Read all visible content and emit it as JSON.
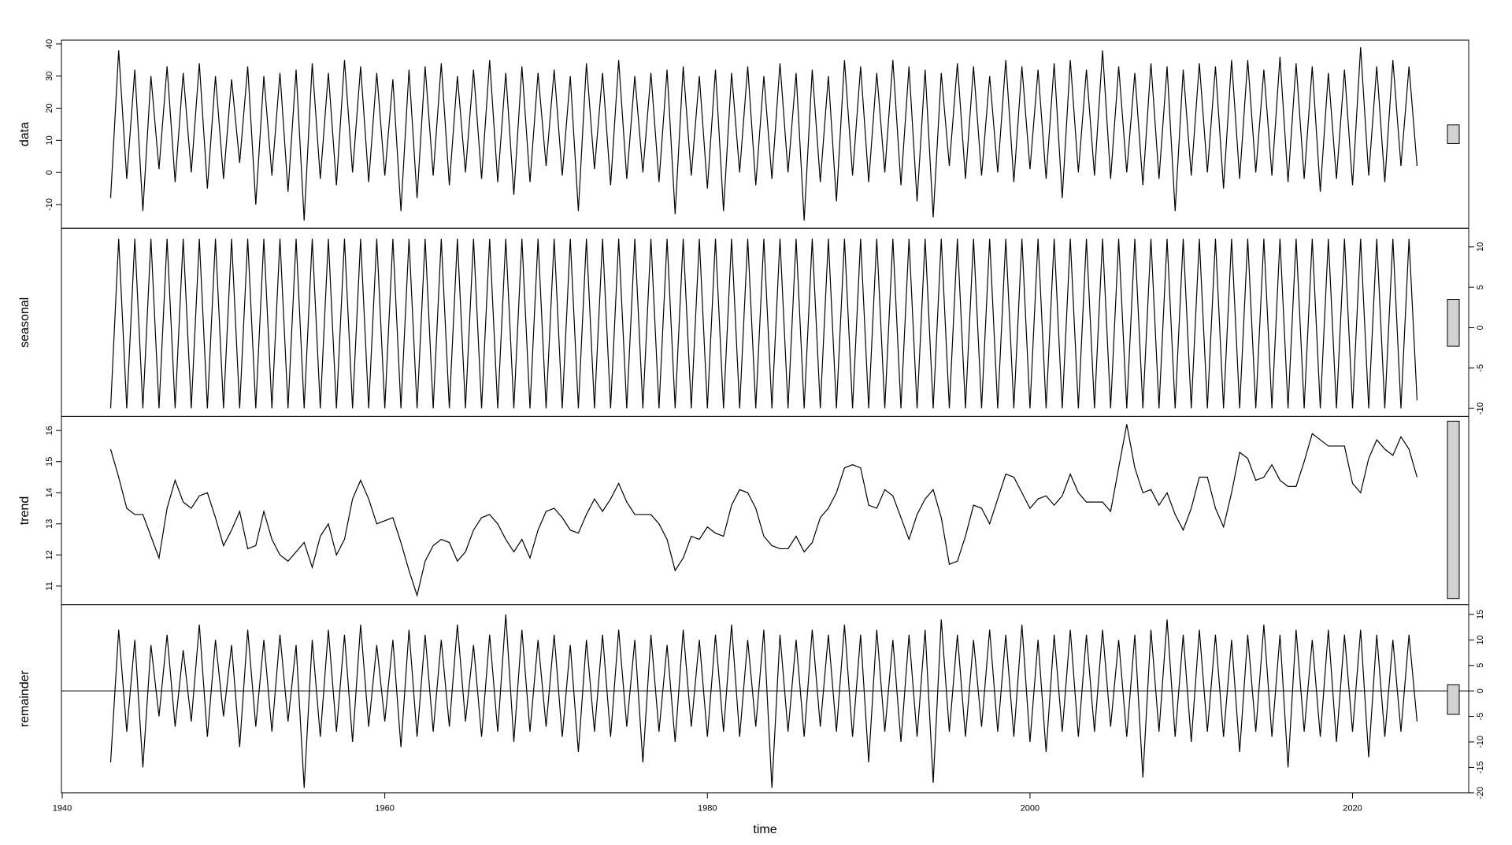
{
  "chart_data": {
    "type": "line",
    "xlabel": "time",
    "xlim": [
      1939.95,
      2027.2
    ],
    "xticks": [
      1940,
      1960,
      1980,
      2000,
      2020
    ],
    "x": [
      1943,
      1943.5,
      1944,
      1944.5,
      1945,
      1945.5,
      1946,
      1946.5,
      1947,
      1947.5,
      1948,
      1948.5,
      1949,
      1949.5,
      1950,
      1950.5,
      1951,
      1951.5,
      1952,
      1952.5,
      1953,
      1953.5,
      1954,
      1954.5,
      1955,
      1955.5,
      1956,
      1956.5,
      1957,
      1957.5,
      1958,
      1958.5,
      1959,
      1959.5,
      1960,
      1960.5,
      1961,
      1961.5,
      1962,
      1962.5,
      1963,
      1963.5,
      1964,
      1964.5,
      1965,
      1965.5,
      1966,
      1966.5,
      1967,
      1967.5,
      1968,
      1968.5,
      1969,
      1969.5,
      1970,
      1970.5,
      1971,
      1971.5,
      1972,
      1972.5,
      1973,
      1973.5,
      1974,
      1974.5,
      1975,
      1975.5,
      1976,
      1976.5,
      1977,
      1977.5,
      1978,
      1978.5,
      1979,
      1979.5,
      1980,
      1980.5,
      1981,
      1981.5,
      1982,
      1982.5,
      1983,
      1983.5,
      1984,
      1984.5,
      1985,
      1985.5,
      1986,
      1986.5,
      1987,
      1987.5,
      1988,
      1988.5,
      1989,
      1989.5,
      1990,
      1990.5,
      1991,
      1991.5,
      1992,
      1992.5,
      1993,
      1993.5,
      1994,
      1994.5,
      1995,
      1995.5,
      1996,
      1996.5,
      1997,
      1997.5,
      1998,
      1998.5,
      1999,
      1999.5,
      2000,
      2000.5,
      2001,
      2001.5,
      2002,
      2002.5,
      2003,
      2003.5,
      2004,
      2004.5,
      2005,
      2005.5,
      2006,
      2006.5,
      2007,
      2007.5,
      2008,
      2008.5,
      2009,
      2009.5,
      2010,
      2010.5,
      2011,
      2011.5,
      2012,
      2012.5,
      2013,
      2013.5,
      2014,
      2014.5,
      2015,
      2015.5,
      2016,
      2016.5,
      2017,
      2017.5,
      2018,
      2018.5,
      2019,
      2019.5,
      2020,
      2020.5,
      2021,
      2021.5,
      2022,
      2022.5,
      2023,
      2023.5,
      2024
    ],
    "panels": [
      {
        "name": "data",
        "axis_side": "left",
        "color": "#000000",
        "ylim": [
          -17.4,
          41.2
        ],
        "yticks": [
          -10,
          0,
          10,
          20,
          30,
          40
        ],
        "range_bar": [
          9,
          14.8
        ],
        "values": [
          -8,
          38,
          -2,
          32,
          -12,
          30,
          1,
          33,
          -3,
          31,
          0,
          34,
          -5,
          30,
          -2,
          29,
          3,
          33,
          -10,
          30,
          -1,
          31,
          -6,
          32,
          -15,
          34,
          -2,
          31,
          -4,
          35,
          0,
          33,
          -3,
          31,
          -1,
          29,
          -12,
          32,
          -8,
          33,
          -1,
          34,
          -4,
          30,
          0,
          32,
          -2,
          35,
          -3,
          31,
          -7,
          33,
          -3,
          31,
          2,
          32,
          -1,
          30,
          -12,
          34,
          1,
          31,
          -4,
          35,
          -2,
          30,
          0,
          31,
          -3,
          32,
          -13,
          33,
          -1,
          30,
          -5,
          32,
          -12,
          31,
          0,
          33,
          -4,
          30,
          -2,
          34,
          0,
          31,
          -15,
          32,
          -3,
          30,
          -9,
          35,
          -1,
          33,
          -3,
          31,
          0,
          35,
          -4,
          33,
          -9,
          32,
          -14,
          31,
          2,
          34,
          -2,
          33,
          -1,
          30,
          0,
          35,
          -3,
          33,
          1,
          32,
          -2,
          34,
          -8,
          35,
          0,
          32,
          -1,
          38,
          -2,
          33,
          0,
          31,
          -4,
          34,
          -2,
          33,
          -12,
          32,
          -1,
          34,
          0,
          33,
          -5,
          35,
          -2,
          35,
          0,
          32,
          -1,
          36,
          -3,
          34,
          -2,
          33,
          -6,
          31,
          -2,
          32,
          -4,
          39,
          -1,
          33,
          -3,
          35,
          2,
          33,
          2
        ]
      },
      {
        "name": "seasonal",
        "axis_side": "right",
        "color": "#000000",
        "ylim": [
          -11,
          12.3
        ],
        "yticks": [
          -10,
          -5,
          0,
          5,
          10
        ],
        "range_bar": [
          -2.3,
          3.5
        ],
        "values": [
          -10,
          11,
          -10,
          11,
          -10,
          11,
          -10,
          11,
          -10,
          11,
          -10,
          11,
          -10,
          11,
          -10,
          11,
          -10,
          11,
          -10,
          11,
          -10,
          11,
          -10,
          11,
          -10,
          11,
          -10,
          11,
          -10,
          11,
          -10,
          11,
          -10,
          11,
          -10,
          11,
          -10,
          11,
          -10,
          11,
          -10,
          11,
          -10,
          11,
          -10,
          11,
          -10,
          11,
          -10,
          11,
          -10,
          11,
          -10,
          11,
          -10,
          11,
          -10,
          11,
          -10,
          11,
          -10,
          11,
          -10,
          11,
          -10,
          11,
          -10,
          11,
          -10,
          11,
          -10,
          11,
          -10,
          11,
          -10,
          11,
          -10,
          11,
          -10,
          11,
          -10,
          11,
          -10,
          11,
          -10,
          11,
          -10,
          11,
          -10,
          11,
          -10,
          11,
          -10,
          11,
          -10,
          11,
          -10,
          11,
          -10,
          11,
          -10,
          11,
          -10,
          11,
          -10,
          11,
          -10,
          11,
          -10,
          11,
          -10,
          11,
          -10,
          11,
          -10,
          11,
          -10,
          11,
          -10,
          11,
          -10,
          11,
          -10,
          11,
          -10,
          11,
          -10,
          11,
          -10,
          11,
          -10,
          11,
          -10,
          11,
          -10,
          11,
          -10,
          11,
          -10,
          11,
          -10,
          11,
          -10,
          11,
          -10,
          11,
          -10,
          11,
          -10,
          11,
          -10,
          11,
          -10,
          11,
          -10,
          11,
          -10,
          11,
          -10,
          11,
          -10,
          11,
          -9
        ]
      },
      {
        "name": "trend",
        "axis_side": "left",
        "color": "#000000",
        "ylim": [
          10.4,
          16.45
        ],
        "yticks": [
          11,
          12,
          13,
          14,
          15,
          16
        ],
        "range_bar": [
          10.6,
          16.3
        ],
        "values": [
          15.4,
          14.5,
          13.5,
          13.3,
          13.3,
          12.6,
          11.9,
          13.5,
          14.4,
          13.7,
          13.5,
          13.9,
          14.0,
          13.2,
          12.3,
          12.8,
          13.4,
          12.2,
          12.3,
          13.4,
          12.5,
          12.0,
          11.8,
          12.1,
          12.4,
          11.6,
          12.6,
          13.0,
          12.0,
          12.5,
          13.8,
          14.4,
          13.8,
          13.0,
          13.1,
          13.2,
          12.4,
          11.5,
          10.7,
          11.8,
          12.3,
          12.5,
          12.4,
          11.8,
          12.1,
          12.8,
          13.2,
          13.3,
          13.0,
          12.5,
          12.1,
          12.5,
          11.9,
          12.8,
          13.4,
          13.5,
          13.2,
          12.8,
          12.7,
          13.3,
          13.8,
          13.4,
          13.8,
          14.3,
          13.7,
          13.3,
          13.3,
          13.3,
          13.0,
          12.5,
          11.5,
          11.9,
          12.6,
          12.5,
          12.9,
          12.7,
          12.6,
          13.6,
          14.1,
          14.0,
          13.5,
          12.6,
          12.3,
          12.2,
          12.2,
          12.6,
          12.1,
          12.4,
          13.2,
          13.5,
          14.0,
          14.8,
          14.9,
          14.8,
          13.6,
          13.5,
          14.1,
          13.9,
          13.2,
          12.5,
          13.3,
          13.8,
          14.1,
          13.2,
          11.7,
          11.8,
          12.6,
          13.6,
          13.5,
          13.0,
          13.8,
          14.6,
          14.5,
          14.0,
          13.5,
          13.8,
          13.9,
          13.6,
          13.9,
          14.6,
          14.0,
          13.7,
          13.7,
          13.7,
          13.4,
          14.8,
          16.2,
          14.8,
          14.0,
          14.1,
          13.6,
          14.0,
          13.3,
          12.8,
          13.5,
          14.5,
          14.5,
          13.5,
          12.9,
          14.0,
          15.3,
          15.1,
          14.4,
          14.5,
          14.9,
          14.4,
          14.2,
          14.2,
          15.0,
          15.9,
          15.7,
          15.5,
          15.5,
          15.5,
          14.3,
          14.0,
          15.1,
          15.7,
          15.4,
          15.2,
          15.8,
          15.4,
          14.5
        ]
      },
      {
        "name": "remainder",
        "axis_side": "right",
        "color": "#000000",
        "ylim": [
          -20,
          16.9
        ],
        "yticks": [
          -20,
          -15,
          -10,
          -5,
          0,
          5,
          10,
          15
        ],
        "range_bar": [
          -4.6,
          1.2
        ],
        "zero_line": true,
        "values": [
          -14,
          12,
          -8,
          10,
          -15,
          9,
          -5,
          11,
          -7,
          8,
          -6,
          13,
          -9,
          10,
          -5,
          9,
          -11,
          12,
          -7,
          10,
          -8,
          11,
          -6,
          9,
          -19,
          10,
          -9,
          12,
          -8,
          11,
          -10,
          13,
          -7,
          9,
          -6,
          10,
          -11,
          12,
          -9,
          11,
          -8,
          10,
          -7,
          13,
          -6,
          9,
          -9,
          11,
          -8,
          15,
          -10,
          12,
          -8,
          10,
          -7,
          11,
          -9,
          9,
          -12,
          10,
          -8,
          11,
          -9,
          12,
          -7,
          10,
          -14,
          11,
          -8,
          9,
          -10,
          12,
          -7,
          10,
          -9,
          11,
          -8,
          13,
          -9,
          10,
          -7,
          12,
          -19,
          11,
          -8,
          10,
          -9,
          12,
          -7,
          11,
          -8,
          13,
          -9,
          11,
          -14,
          12,
          -8,
          10,
          -10,
          11,
          -9,
          12,
          -18,
          14,
          -8,
          11,
          -9,
          10,
          -7,
          12,
          -8,
          11,
          -9,
          13,
          -10,
          10,
          -12,
          11,
          -8,
          12,
          -9,
          11,
          -8,
          12,
          -7,
          10,
          -9,
          11,
          -17,
          12,
          -8,
          14,
          -9,
          11,
          -10,
          12,
          -8,
          11,
          -9,
          10,
          -12,
          11,
          -8,
          13,
          -9,
          11,
          -15,
          12,
          -8,
          10,
          -9,
          12,
          -10,
          11,
          -8,
          12,
          -13,
          11,
          -9,
          10,
          -8,
          11,
          -6
        ]
      }
    ]
  }
}
